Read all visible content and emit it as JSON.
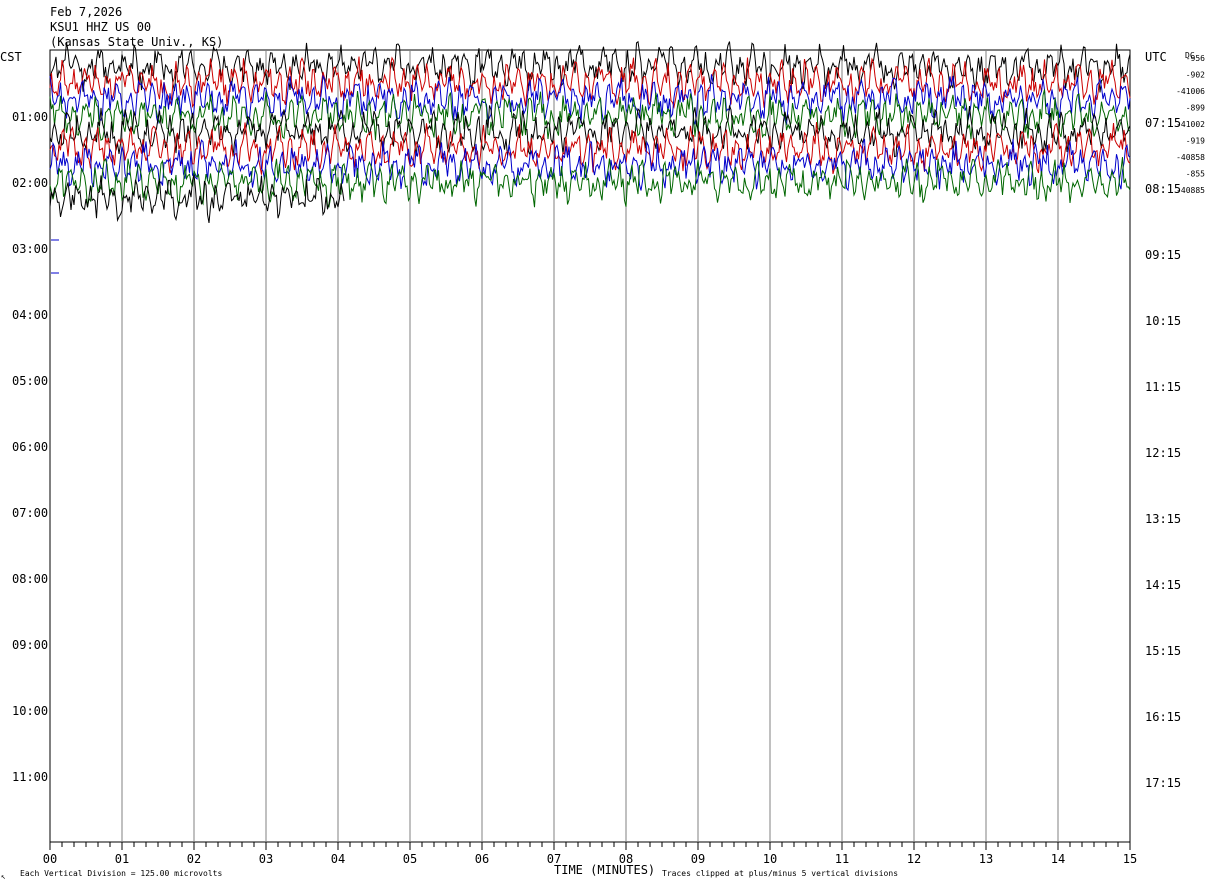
{
  "header": {
    "date": "Feb 7,2026",
    "station": "KSU1 HHZ US 00",
    "location": "(Kansas State Univ., KS)"
  },
  "left_zone_label": "CST",
  "right_zone_label": "UTC",
  "dc_label": "DC",
  "footer": {
    "scale_note": "Each Vertical Division =  125.00 microvolts",
    "clip_note": "Traces clipped at plus/minus 5 vertical divisions",
    "corner_mark": "↖"
  },
  "chart_data": {
    "type": "line",
    "title": "",
    "xlabel": "TIME (MINUTES)",
    "ylabel": "",
    "x_range": [
      0,
      15
    ],
    "x_ticks": [
      "00",
      "01",
      "02",
      "03",
      "04",
      "05",
      "06",
      "07",
      "08",
      "09",
      "10",
      "11",
      "12",
      "13",
      "14",
      "15"
    ],
    "hour_labels_left": [
      "01:00",
      "02:00",
      "03:00",
      "04:00",
      "05:00",
      "06:00",
      "07:00",
      "08:00",
      "09:00",
      "10:00",
      "11:00"
    ],
    "hour_labels_right": [
      "UTC",
      "07:15",
      "08:15",
      "09:15",
      "10:15",
      "11:15",
      "12:15",
      "13:15",
      "14:15",
      "15:15",
      "16:15",
      "17:15"
    ],
    "trace_colors": [
      "#000000",
      "#cc0000",
      "#0000cc",
      "#006600"
    ],
    "dc_offsets": [
      "-956",
      "-902",
      "-41006",
      "-899",
      "-41002",
      "-919",
      "-40858",
      "-855",
      "-40885"
    ],
    "grid": "vertical lines every minute",
    "traces": [
      {
        "row": 0,
        "color": "#000000",
        "amplitude_divisions": 5,
        "clipped": true
      },
      {
        "row": 1,
        "color": "#cc0000",
        "amplitude_divisions": 5,
        "clipped": true
      },
      {
        "row": 2,
        "color": "#0000cc",
        "amplitude_divisions": 5,
        "clipped": true
      },
      {
        "row": 3,
        "color": "#006600",
        "amplitude_divisions": 5,
        "clipped": true
      },
      {
        "row": 4,
        "color": "#000000",
        "amplitude_divisions": 5,
        "clipped": true
      },
      {
        "row": 5,
        "color": "#cc0000",
        "amplitude_divisions": 5,
        "clipped": true
      },
      {
        "row": 6,
        "color": "#0000cc",
        "amplitude_divisions": 5,
        "clipped": true
      },
      {
        "row": 7,
        "color": "#006600",
        "amplitude_divisions": 5,
        "clipped": true
      },
      {
        "row": 8,
        "color": "#000000",
        "amplitude_divisions": 5,
        "clipped": true,
        "partial_end_minute": 4.1
      }
    ]
  }
}
